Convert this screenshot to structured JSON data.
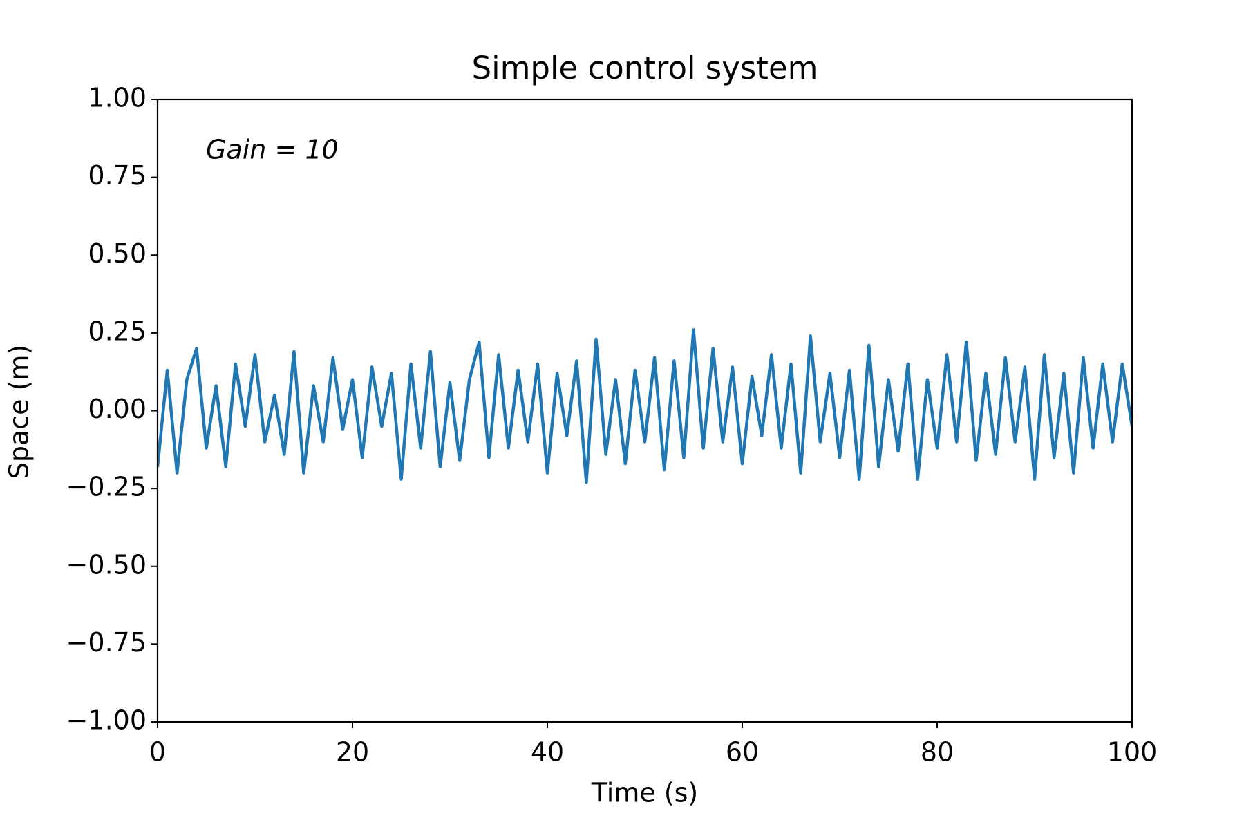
{
  "chart_data": {
    "type": "line",
    "title": "Simple control system",
    "x_label": "Time (s)",
    "y_label": "Space (m)",
    "annotation": "Gain = 10",
    "color": "#1f77b4",
    "grid": false,
    "x": [
      0,
      1,
      2,
      3,
      4,
      5,
      6,
      7,
      8,
      9,
      10,
      11,
      12,
      13,
      14,
      15,
      16,
      17,
      18,
      19,
      20,
      21,
      22,
      23,
      24,
      25,
      26,
      27,
      28,
      29,
      30,
      31,
      32,
      33,
      34,
      35,
      36,
      37,
      38,
      39,
      40,
      41,
      42,
      43,
      44,
      45,
      46,
      47,
      48,
      49,
      50,
      51,
      52,
      53,
      54,
      55,
      56,
      57,
      58,
      59,
      60,
      61,
      62,
      63,
      64,
      65,
      66,
      67,
      68,
      69,
      70,
      71,
      72,
      73,
      74,
      75,
      76,
      77,
      78,
      79,
      80,
      81,
      82,
      83,
      84,
      85,
      86,
      87,
      88,
      89,
      90,
      91,
      92,
      93,
      94,
      95,
      96,
      97,
      98,
      99,
      100
    ],
    "values": [
      -0.18,
      0.13,
      -0.2,
      0.1,
      0.2,
      -0.12,
      0.08,
      -0.18,
      0.15,
      -0.05,
      0.18,
      -0.1,
      0.05,
      -0.14,
      0.19,
      -0.2,
      0.08,
      -0.1,
      0.17,
      -0.06,
      0.1,
      -0.15,
      0.14,
      -0.05,
      0.12,
      -0.22,
      0.15,
      -0.12,
      0.19,
      -0.18,
      0.09,
      -0.16,
      0.1,
      0.22,
      -0.15,
      0.18,
      -0.12,
      0.13,
      -0.1,
      0.15,
      -0.2,
      0.12,
      -0.08,
      0.16,
      -0.23,
      0.23,
      -0.14,
      0.1,
      -0.17,
      0.13,
      -0.1,
      0.17,
      -0.19,
      0.16,
      -0.15,
      0.26,
      -0.12,
      0.2,
      -0.1,
      0.14,
      -0.17,
      0.11,
      -0.08,
      0.18,
      -0.12,
      0.15,
      -0.2,
      0.24,
      -0.1,
      0.12,
      -0.15,
      0.13,
      -0.22,
      0.21,
      -0.18,
      0.1,
      -0.13,
      0.15,
      -0.22,
      0.1,
      -0.12,
      0.18,
      -0.1,
      0.22,
      -0.16,
      0.12,
      -0.14,
      0.17,
      -0.1,
      0.14,
      -0.22,
      0.18,
      -0.15,
      0.12,
      -0.2,
      0.17,
      -0.12,
      0.15,
      -0.1,
      0.15,
      -0.05
    ],
    "xlim": [
      0,
      100
    ],
    "xticks": [
      0,
      20,
      40,
      60,
      80,
      100
    ],
    "ylim": [
      -1,
      1
    ],
    "yticks": [
      {
        "value": -1,
        "label": "−1.00"
      },
      {
        "value": -0.75,
        "label": "−0.75"
      },
      {
        "value": -0.5,
        "label": "−0.50"
      },
      {
        "value": -0.25,
        "label": "−0.25"
      },
      {
        "value": 0,
        "label": "0.00"
      },
      {
        "value": 0.25,
        "label": "0.25"
      },
      {
        "value": 0.5,
        "label": "0.50"
      },
      {
        "value": 0.75,
        "label": "0.75"
      },
      {
        "value": 1,
        "label": "1.00"
      }
    ]
  }
}
